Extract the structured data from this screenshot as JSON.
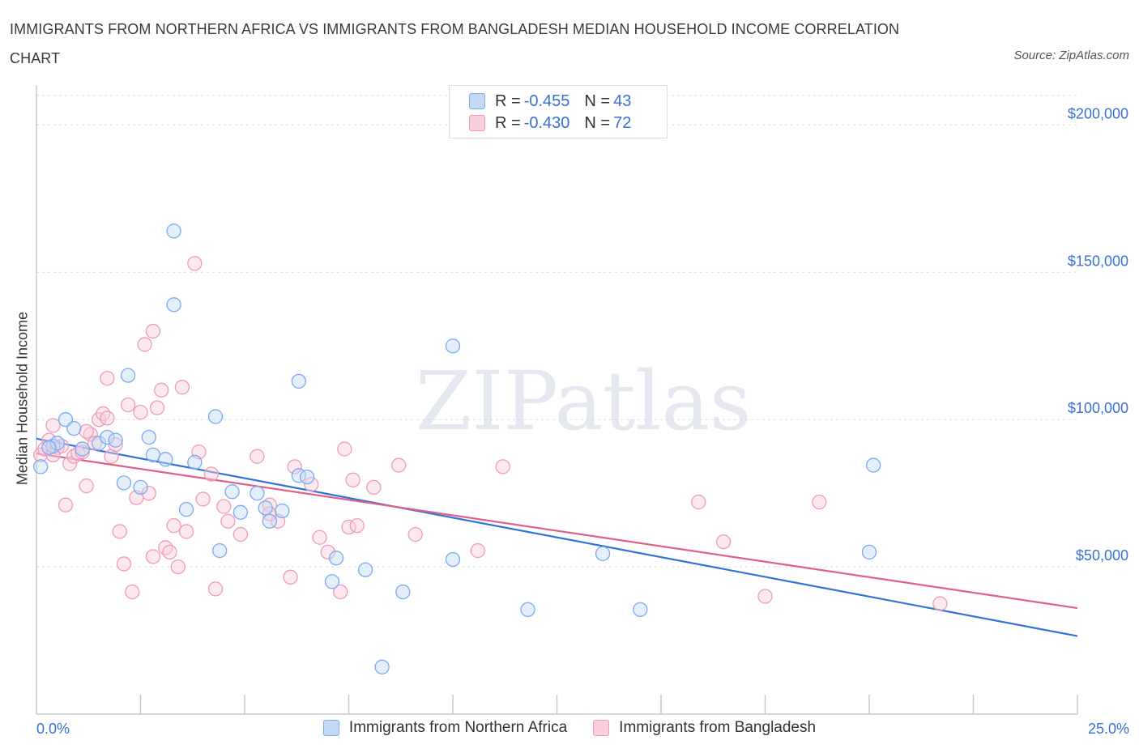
{
  "chart_data": {
    "type": "scatter",
    "title": "IMMIGRANTS FROM NORTHERN AFRICA VS IMMIGRANTS FROM BANGLADESH MEDIAN HOUSEHOLD INCOME CORRELATION CHART",
    "source": "Source: ZipAtlas.com",
    "watermark": "ZIPatlas",
    "xlabel": "",
    "ylabel": "Median Household Income",
    "x_min_label": "0.0%",
    "x_max_label": "25.0%",
    "xlim": [
      0,
      25
    ],
    "ylim": [
      0,
      210000
    ],
    "yticks": [
      {
        "value": 50000,
        "label": "$50,000"
      },
      {
        "value": 100000,
        "label": "$100,000"
      },
      {
        "value": 150000,
        "label": "$150,000"
      },
      {
        "value": 200000,
        "label": "$200,000"
      }
    ],
    "series": [
      {
        "name": "Immigrants from Northern Africa",
        "color": "#7aaaf0",
        "fill": "#c5d9f7",
        "line_color": "#2f73d6",
        "R": "-0.455",
        "N": "43",
        "trend": [
          [
            0,
            93500
          ],
          [
            25,
            26500
          ]
        ],
        "points": [
          [
            0.1,
            84000
          ],
          [
            0.4,
            91000
          ],
          [
            0.5,
            92000
          ],
          [
            0.7,
            100000
          ],
          [
            0.9,
            97000
          ],
          [
            1.1,
            90000
          ],
          [
            1.5,
            92000
          ],
          [
            1.7,
            94000
          ],
          [
            1.9,
            93000
          ],
          [
            2.1,
            78500
          ],
          [
            2.2,
            115000
          ],
          [
            2.5,
            77000
          ],
          [
            2.7,
            94000
          ],
          [
            2.8,
            88000
          ],
          [
            3.1,
            86500
          ],
          [
            3.3,
            164000
          ],
          [
            3.3,
            139000
          ],
          [
            3.6,
            69500
          ],
          [
            3.8,
            85500
          ],
          [
            4.3,
            101000
          ],
          [
            4.4,
            55500
          ],
          [
            4.7,
            75500
          ],
          [
            4.9,
            68500
          ],
          [
            5.3,
            75000
          ],
          [
            5.5,
            70000
          ],
          [
            5.6,
            65500
          ],
          [
            5.9,
            69000
          ],
          [
            6.3,
            113000
          ],
          [
            6.3,
            81000
          ],
          [
            6.5,
            80500
          ],
          [
            7.1,
            45000
          ],
          [
            7.2,
            53000
          ],
          [
            7.9,
            49000
          ],
          [
            8.3,
            16000
          ],
          [
            8.8,
            41500
          ],
          [
            10.0,
            125000
          ],
          [
            10.0,
            52500
          ],
          [
            11.8,
            35500
          ],
          [
            13.6,
            54500
          ],
          [
            14.5,
            35500
          ],
          [
            20.0,
            55000
          ],
          [
            20.1,
            84500
          ],
          [
            0.3,
            90500
          ]
        ]
      },
      {
        "name": "Immigrants from Bangladesh",
        "color": "#f09ab8",
        "fill": "#f9cfdd",
        "line_color": "#e0608c",
        "R": "-0.430",
        "N": "72",
        "trend": [
          [
            0,
            88500
          ],
          [
            25,
            36000
          ]
        ],
        "points": [
          [
            0.1,
            88000
          ],
          [
            0.2,
            90000
          ],
          [
            0.3,
            93000
          ],
          [
            0.4,
            98000
          ],
          [
            0.5,
            90500
          ],
          [
            0.6,
            91000
          ],
          [
            0.7,
            71000
          ],
          [
            0.8,
            85000
          ],
          [
            0.9,
            87500
          ],
          [
            1.0,
            88500
          ],
          [
            1.1,
            89000
          ],
          [
            1.2,
            77500
          ],
          [
            1.3,
            95000
          ],
          [
            1.4,
            92000
          ],
          [
            1.5,
            100000
          ],
          [
            1.6,
            102000
          ],
          [
            1.7,
            100500
          ],
          [
            1.7,
            114000
          ],
          [
            1.8,
            87500
          ],
          [
            1.9,
            91500
          ],
          [
            2.0,
            62000
          ],
          [
            2.1,
            51000
          ],
          [
            2.2,
            105000
          ],
          [
            2.3,
            41500
          ],
          [
            2.4,
            73500
          ],
          [
            2.5,
            102500
          ],
          [
            2.6,
            125500
          ],
          [
            2.7,
            75000
          ],
          [
            2.8,
            130000
          ],
          [
            2.8,
            53500
          ],
          [
            2.9,
            104000
          ],
          [
            3.0,
            110000
          ],
          [
            3.1,
            56500
          ],
          [
            3.2,
            55000
          ],
          [
            3.3,
            64000
          ],
          [
            3.4,
            50000
          ],
          [
            3.5,
            111000
          ],
          [
            3.6,
            62000
          ],
          [
            3.8,
            153000
          ],
          [
            3.9,
            89000
          ],
          [
            4.0,
            73000
          ],
          [
            4.2,
            81500
          ],
          [
            4.3,
            42500
          ],
          [
            4.5,
            70500
          ],
          [
            4.6,
            65500
          ],
          [
            4.9,
            61000
          ],
          [
            5.3,
            87500
          ],
          [
            5.6,
            71000
          ],
          [
            5.8,
            65500
          ],
          [
            6.1,
            46500
          ],
          [
            6.2,
            84000
          ],
          [
            6.6,
            78000
          ],
          [
            6.8,
            60000
          ],
          [
            7.0,
            55000
          ],
          [
            7.3,
            41500
          ],
          [
            7.4,
            90000
          ],
          [
            7.5,
            63500
          ],
          [
            7.6,
            79500
          ],
          [
            7.7,
            64000
          ],
          [
            8.1,
            77000
          ],
          [
            8.7,
            84500
          ],
          [
            9.1,
            61000
          ],
          [
            10.6,
            55500
          ],
          [
            11.2,
            84000
          ],
          [
            15.9,
            72000
          ],
          [
            16.5,
            58500
          ],
          [
            17.5,
            40000
          ],
          [
            18.8,
            72000
          ],
          [
            21.7,
            37500
          ],
          [
            0.4,
            88000
          ],
          [
            1.2,
            96000
          ],
          [
            5.6,
            68000
          ]
        ]
      }
    ]
  }
}
